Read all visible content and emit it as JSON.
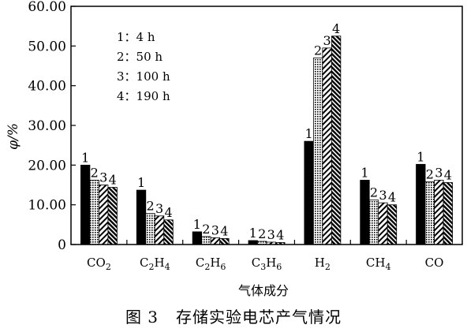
{
  "chart_data": {
    "type": "bar",
    "title": "",
    "ylabel": "φ/%",
    "xlabel": "气体成分",
    "ylim": [
      0,
      60
    ],
    "yticks": [
      "0",
      "10.00",
      "20.00",
      "30.00",
      "40.00",
      "50.00",
      "60.00"
    ],
    "grid": false,
    "categories": [
      "CO2",
      "C2H4",
      "C2H6",
      "C3H6",
      "H2",
      "CH4",
      "CO"
    ],
    "category_labels": [
      {
        "base": "CO",
        "sub": "2",
        "rest": ""
      },
      {
        "base": "C",
        "sub": "2",
        "rest": "H",
        "sub2": "4"
      },
      {
        "base": "C",
        "sub": "2",
        "rest": "H",
        "sub2": "6"
      },
      {
        "base": "C",
        "sub": "3",
        "rest": "H",
        "sub2": "6"
      },
      {
        "base": "H",
        "sub": "2",
        "rest": ""
      },
      {
        "base": "CH",
        "sub": "4",
        "rest": ""
      },
      {
        "base": "CO",
        "sub": "",
        "rest": ""
      }
    ],
    "series": [
      {
        "name": "1：4 h",
        "id": "1",
        "pattern": "solid",
        "values": [
          20.0,
          13.7,
          3.2,
          1.0,
          26.0,
          16.2,
          20.2
        ]
      },
      {
        "name": "2：50 h",
        "id": "2",
        "pattern": "dots",
        "values": [
          16.2,
          7.8,
          2.0,
          0.8,
          47.0,
          11.2,
          15.8
        ]
      },
      {
        "name": "3：100 h",
        "id": "3",
        "pattern": "lines",
        "values": [
          15.0,
          7.2,
          1.7,
          0.6,
          49.5,
          10.5,
          16.2
        ]
      },
      {
        "name": "4：190 h",
        "id": "4",
        "pattern": "dense-lines",
        "values": [
          14.4,
          6.2,
          1.5,
          0.5,
          52.5,
          10.0,
          15.6
        ]
      }
    ],
    "legend_position": "top-left",
    "bar_labels_above": true
  },
  "caption": {
    "number": "图 3",
    "text": "存储实验电芯产气情况"
  }
}
